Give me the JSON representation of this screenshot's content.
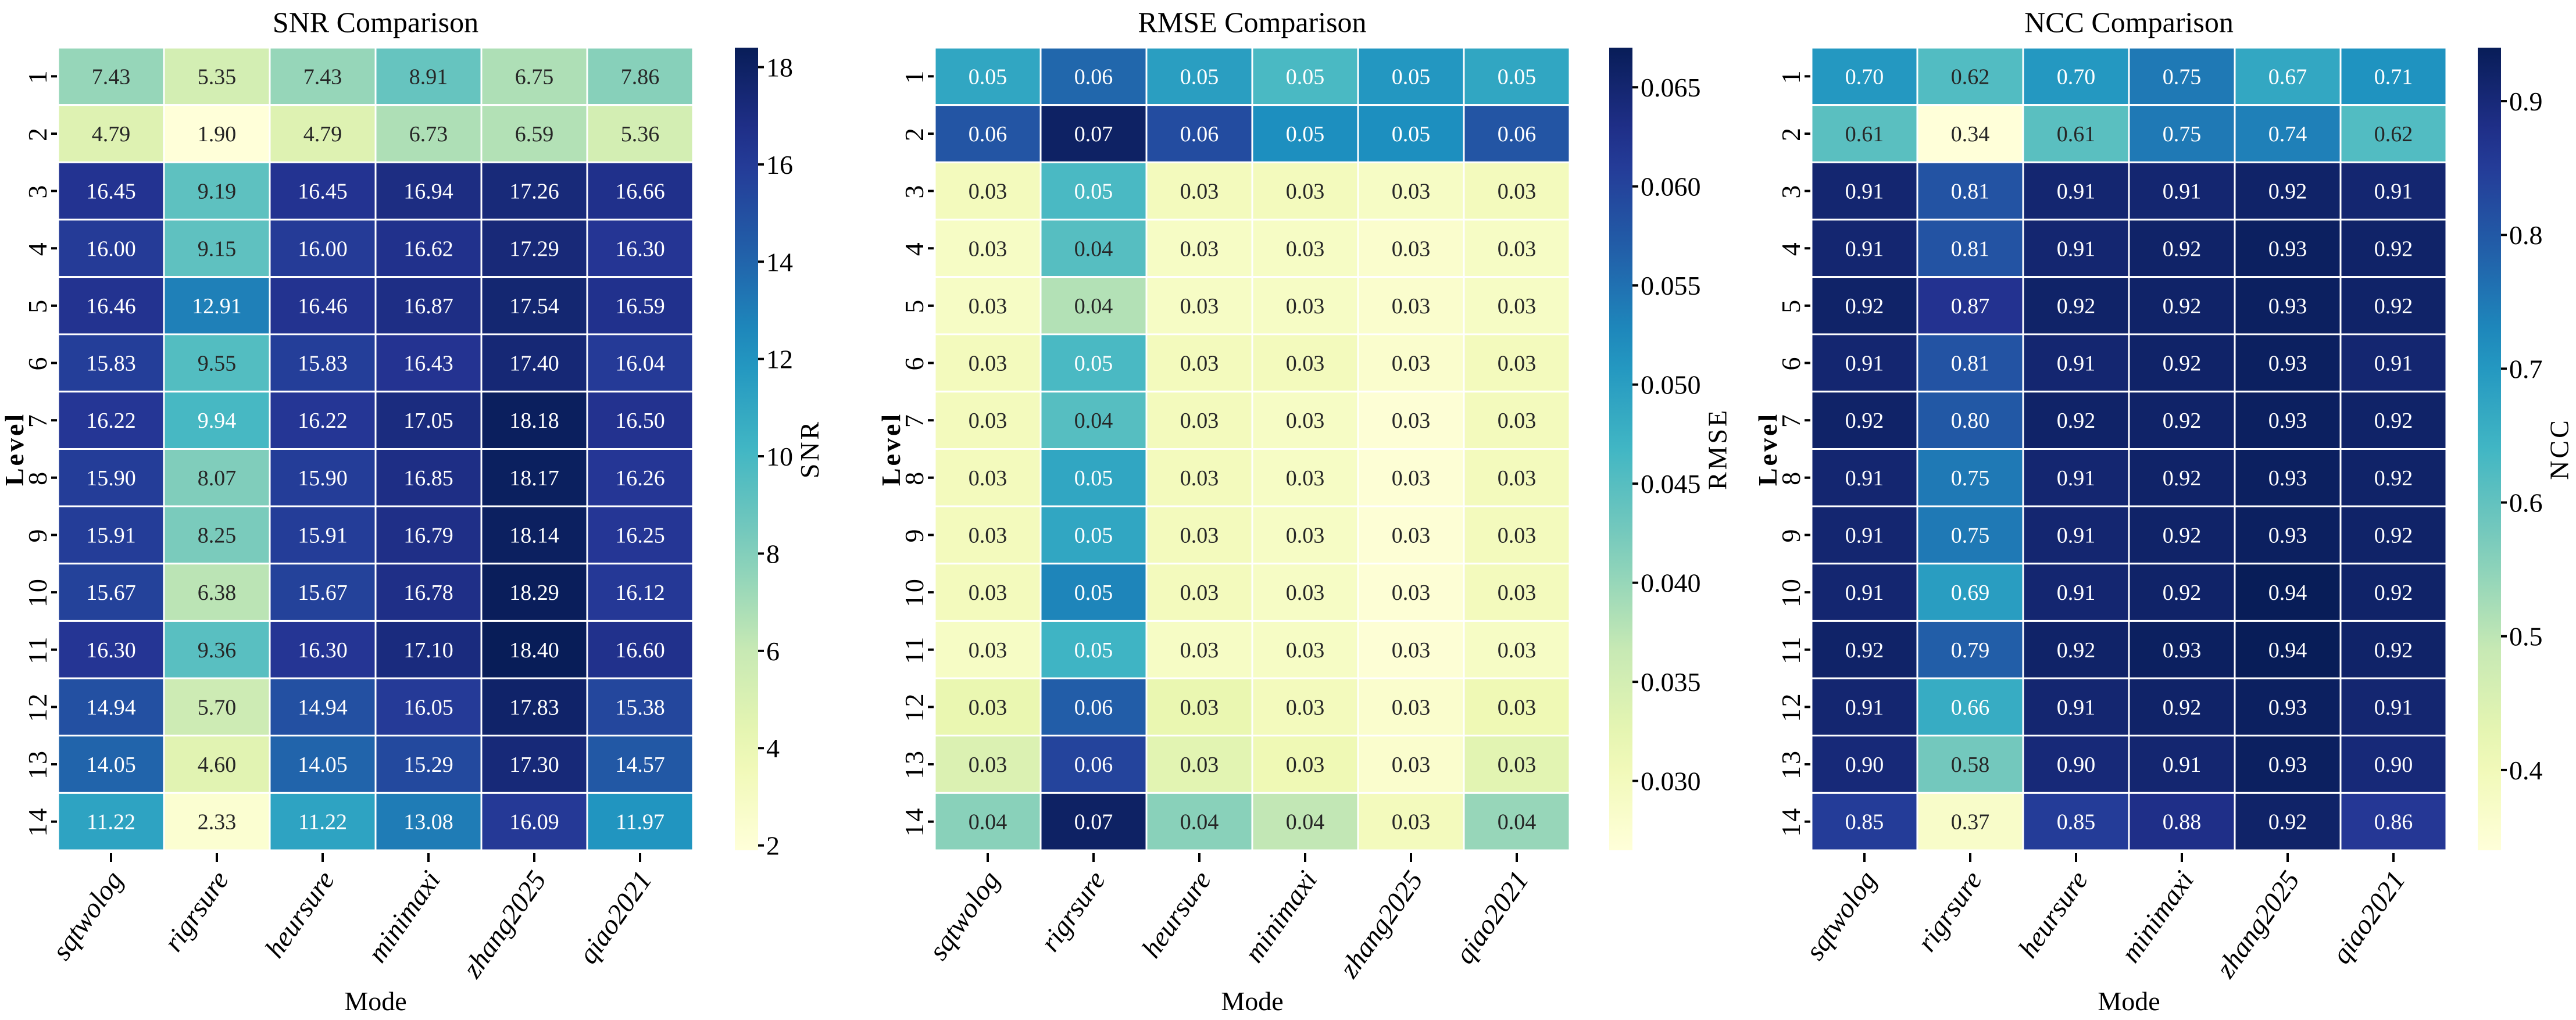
{
  "chart_data": [
    {
      "type": "heatmap",
      "title": "SNR Comparison",
      "xlabel": "Mode",
      "ylabel": "Level",
      "colorbar_label": "SNR",
      "colormap": "YlGnBu",
      "colormap_colors": [
        "#ffffd9",
        "#edf8b1",
        "#c7e9b4",
        "#7fcdbb",
        "#41b6c4",
        "#1d91c0",
        "#225ea8",
        "#253494",
        "#081d58"
      ],
      "x": [
        "sqtwolog",
        "rigrsure",
        "heursure",
        "minimaxi",
        "zhang2025",
        "qiao2021"
      ],
      "y": [
        "1",
        "2",
        "3",
        "4",
        "5",
        "6",
        "7",
        "8",
        "9",
        "10",
        "11",
        "12",
        "13",
        "14"
      ],
      "vmin": 1.9,
      "vmax": 18.4,
      "colorbar_ticks": [
        2,
        4,
        6,
        8,
        10,
        12,
        14,
        16,
        18
      ],
      "colorbar_tick_labels": [
        "2",
        "4",
        "6",
        "8",
        "10",
        "12",
        "14",
        "16",
        "18"
      ],
      "decimals": 2,
      "values": [
        [
          7.43,
          5.35,
          7.43,
          8.91,
          6.75,
          7.86
        ],
        [
          4.79,
          1.9,
          4.79,
          6.73,
          6.59,
          5.36
        ],
        [
          16.45,
          9.19,
          16.45,
          16.94,
          17.26,
          16.66
        ],
        [
          16.0,
          9.15,
          16.0,
          16.62,
          17.29,
          16.3
        ],
        [
          16.46,
          12.91,
          16.46,
          16.87,
          17.54,
          16.59
        ],
        [
          15.83,
          9.55,
          15.83,
          16.43,
          17.4,
          16.04
        ],
        [
          16.22,
          9.94,
          16.22,
          17.05,
          18.18,
          16.5
        ],
        [
          15.9,
          8.07,
          15.9,
          16.85,
          18.17,
          16.26
        ],
        [
          15.91,
          8.25,
          15.91,
          16.79,
          18.14,
          16.25
        ],
        [
          15.67,
          6.38,
          15.67,
          16.78,
          18.29,
          16.12
        ],
        [
          16.3,
          9.36,
          16.3,
          17.1,
          18.4,
          16.6
        ],
        [
          14.94,
          5.7,
          14.94,
          16.05,
          17.83,
          15.38
        ],
        [
          14.05,
          4.6,
          14.05,
          15.29,
          17.3,
          14.57
        ],
        [
          11.22,
          2.33,
          11.22,
          13.08,
          16.09,
          11.97
        ]
      ]
    },
    {
      "type": "heatmap",
      "title": "RMSE Comparison",
      "xlabel": "Mode",
      "ylabel": "Level",
      "colorbar_label": "RMSE",
      "colormap": "YlGnBu",
      "colormap_colors": [
        "#ffffd9",
        "#edf8b1",
        "#c7e9b4",
        "#7fcdbb",
        "#41b6c4",
        "#1d91c0",
        "#225ea8",
        "#253494",
        "#081d58"
      ],
      "x": [
        "sqtwolog",
        "rigrsure",
        "heursure",
        "minimaxi",
        "zhang2025",
        "qiao2021"
      ],
      "y": [
        "1",
        "2",
        "3",
        "4",
        "5",
        "6",
        "7",
        "8",
        "9",
        "10",
        "11",
        "12",
        "13",
        "14"
      ],
      "vmin": 0.0265,
      "vmax": 0.067,
      "colorbar_ticks": [
        0.03,
        0.035,
        0.04,
        0.045,
        0.05,
        0.055,
        0.06,
        0.065
      ],
      "colorbar_tick_labels": [
        "0.030",
        "0.035",
        "0.040",
        "0.045",
        "0.050",
        "0.055",
        "0.060",
        "0.065"
      ],
      "decimals": 2,
      "values": [
        [
          0.049,
          0.056,
          0.05,
          0.046,
          0.051,
          0.049
        ],
        [
          0.058,
          0.066,
          0.059,
          0.052,
          0.052,
          0.058
        ],
        [
          0.03,
          0.046,
          0.03,
          0.03,
          0.029,
          0.03
        ],
        [
          0.029,
          0.045,
          0.029,
          0.029,
          0.028,
          0.029
        ],
        [
          0.029,
          0.038,
          0.029,
          0.029,
          0.028,
          0.029
        ],
        [
          0.03,
          0.046,
          0.03,
          0.03,
          0.028,
          0.03
        ],
        [
          0.03,
          0.045,
          0.03,
          0.029,
          0.027,
          0.03
        ],
        [
          0.03,
          0.049,
          0.03,
          0.029,
          0.027,
          0.03
        ],
        [
          0.03,
          0.049,
          0.03,
          0.029,
          0.027,
          0.03
        ],
        [
          0.03,
          0.053,
          0.03,
          0.029,
          0.027,
          0.03
        ],
        [
          0.029,
          0.047,
          0.029,
          0.029,
          0.027,
          0.029
        ],
        [
          0.032,
          0.057,
          0.032,
          0.03,
          0.028,
          0.031
        ],
        [
          0.034,
          0.06,
          0.033,
          0.031,
          0.028,
          0.033
        ],
        [
          0.041,
          0.066,
          0.041,
          0.037,
          0.03,
          0.04
        ]
      ]
    },
    {
      "type": "heatmap",
      "title": "NCC Comparison",
      "xlabel": "Mode",
      "ylabel": "Level",
      "colorbar_label": "NCC",
      "colormap": "YlGnBu",
      "colormap_colors": [
        "#ffffd9",
        "#edf8b1",
        "#c7e9b4",
        "#7fcdbb",
        "#41b6c4",
        "#1d91c0",
        "#225ea8",
        "#253494",
        "#081d58"
      ],
      "x": [
        "sqtwolog",
        "rigrsure",
        "heursure",
        "minimaxi",
        "zhang2025",
        "qiao2021"
      ],
      "y": [
        "1",
        "2",
        "3",
        "4",
        "5",
        "6",
        "7",
        "8",
        "9",
        "10",
        "11",
        "12",
        "13",
        "14"
      ],
      "vmin": 0.34,
      "vmax": 0.94,
      "colorbar_ticks": [
        0.4,
        0.5,
        0.6,
        0.7,
        0.8,
        0.9
      ],
      "colorbar_tick_labels": [
        "0.4",
        "0.5",
        "0.6",
        "0.7",
        "0.8",
        "0.9"
      ],
      "decimals": 2,
      "values": [
        [
          0.7,
          0.62,
          0.7,
          0.75,
          0.67,
          0.71
        ],
        [
          0.61,
          0.34,
          0.61,
          0.75,
          0.74,
          0.62
        ],
        [
          0.91,
          0.81,
          0.91,
          0.91,
          0.92,
          0.91
        ],
        [
          0.91,
          0.81,
          0.91,
          0.92,
          0.93,
          0.92
        ],
        [
          0.92,
          0.87,
          0.92,
          0.92,
          0.93,
          0.92
        ],
        [
          0.91,
          0.81,
          0.91,
          0.92,
          0.93,
          0.91
        ],
        [
          0.92,
          0.8,
          0.92,
          0.92,
          0.93,
          0.92
        ],
        [
          0.91,
          0.75,
          0.91,
          0.92,
          0.93,
          0.92
        ],
        [
          0.91,
          0.75,
          0.91,
          0.92,
          0.93,
          0.92
        ],
        [
          0.91,
          0.69,
          0.91,
          0.92,
          0.94,
          0.92
        ],
        [
          0.92,
          0.79,
          0.92,
          0.93,
          0.94,
          0.92
        ],
        [
          0.91,
          0.66,
          0.91,
          0.92,
          0.93,
          0.91
        ],
        [
          0.9,
          0.58,
          0.9,
          0.91,
          0.93,
          0.9
        ],
        [
          0.85,
          0.37,
          0.85,
          0.88,
          0.92,
          0.86
        ]
      ]
    }
  ]
}
